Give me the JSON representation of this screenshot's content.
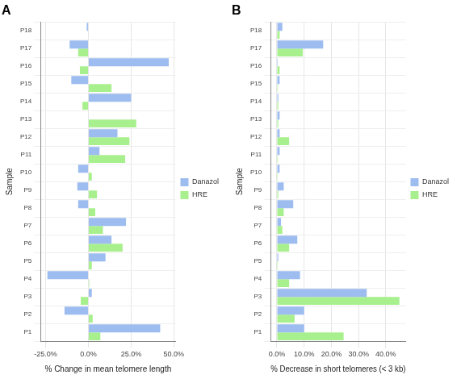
{
  "chart_data": [
    {
      "type": "bar",
      "orientation": "horizontal",
      "title": "A",
      "x_label": "% Change in mean telomere length",
      "y_label": "Sample",
      "categories": [
        "P1",
        "P2",
        "P3",
        "P4",
        "P5",
        "P6",
        "P7",
        "P8",
        "P9",
        "P10",
        "P11",
        "P12",
        "P13",
        "P14",
        "P15",
        "P16",
        "P17",
        "P18"
      ],
      "series": [
        {
          "name": "Danazol",
          "color": "#9dbdf0",
          "values": [
            42,
            -14,
            2,
            -24,
            10,
            13.5,
            22,
            -6,
            -6.5,
            -6,
            6.5,
            17,
            null,
            25,
            -10,
            47,
            -11,
            -1
          ]
        },
        {
          "name": "HRE",
          "color": "#a8f08e",
          "values": [
            7,
            2.5,
            -4.5,
            0.5,
            2,
            20,
            8.5,
            4,
            5,
            2,
            21.5,
            24,
            28,
            -3.5,
            13.5,
            -5,
            -6,
            null
          ]
        }
      ],
      "xlim": [
        -28,
        51
      ],
      "xticks": [
        {
          "value": -25,
          "label": "-25.0%"
        },
        {
          "value": 0,
          "label": "0.0%"
        },
        {
          "value": 25,
          "label": "25.0%"
        },
        {
          "value": 50,
          "label": "50.0%"
        }
      ],
      "legend": "right",
      "grid": true
    },
    {
      "type": "bar",
      "orientation": "horizontal",
      "title": "B",
      "x_label": "% Decrease in short telomeres (< 3 kb)",
      "y_label": "Sample",
      "categories": [
        "P1",
        "P2",
        "P3",
        "P4",
        "P5",
        "P6",
        "P7",
        "P8",
        "P9",
        "P10",
        "P11",
        "P12",
        "P13",
        "P14",
        "P15",
        "P16",
        "P17",
        "P18"
      ],
      "series": [
        {
          "name": "Danazol",
          "color": "#9dbdf0",
          "values": [
            10,
            10,
            33,
            8.5,
            0.5,
            7.5,
            1.5,
            6,
            2.5,
            1,
            1,
            1,
            1,
            0.5,
            1,
            0.3,
            17,
            2
          ]
        },
        {
          "name": "HRE",
          "color": "#a8f08e",
          "values": [
            24.5,
            6.5,
            45,
            4.5,
            0.3,
            4.5,
            2,
            2.5,
            0.5,
            0.3,
            0.3,
            4.5,
            0.5,
            0.5,
            0.3,
            1,
            9.5,
            1
          ]
        }
      ],
      "xlim": [
        -2.3,
        47.3
      ],
      "xticks": [
        {
          "value": 0,
          "label": "0.0%"
        },
        {
          "value": 10,
          "label": "10.0%"
        },
        {
          "value": 20,
          "label": "20.0%"
        },
        {
          "value": 30,
          "label": "30.0%"
        },
        {
          "value": 40,
          "label": "40.0%"
        }
      ],
      "legend": "right",
      "grid": true
    }
  ]
}
